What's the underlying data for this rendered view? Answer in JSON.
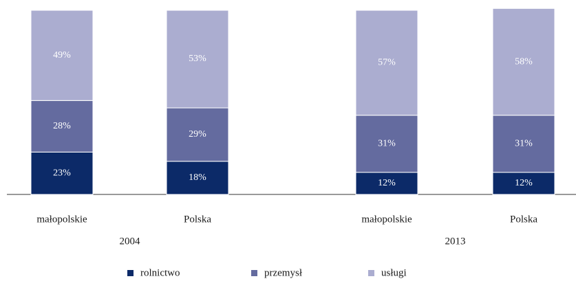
{
  "chart_data": {
    "type": "stacked_bar",
    "categories": [
      "małopolskie",
      "Polska",
      "małopolskie",
      "Polska"
    ],
    "groups": [
      "2004",
      "2013"
    ],
    "series": [
      {
        "name": "rolnictwo",
        "color": "#0c2a68",
        "values": [
          23,
          18,
          12,
          12
        ],
        "value_labels": [
          "23%",
          "18%",
          "12%",
          "12%"
        ]
      },
      {
        "name": "przemysł",
        "color": "#646b9f",
        "values": [
          28,
          29,
          31,
          31
        ],
        "value_labels": [
          "28%",
          "29%",
          "31%",
          "31%"
        ]
      },
      {
        "name": "usługi",
        "color": "#abadd0",
        "values": [
          49,
          53,
          57,
          58
        ],
        "value_labels": [
          "49%",
          "53%",
          "57%",
          "58%"
        ]
      }
    ],
    "ylim": [
      0,
      100
    ],
    "legend": "bottom"
  }
}
